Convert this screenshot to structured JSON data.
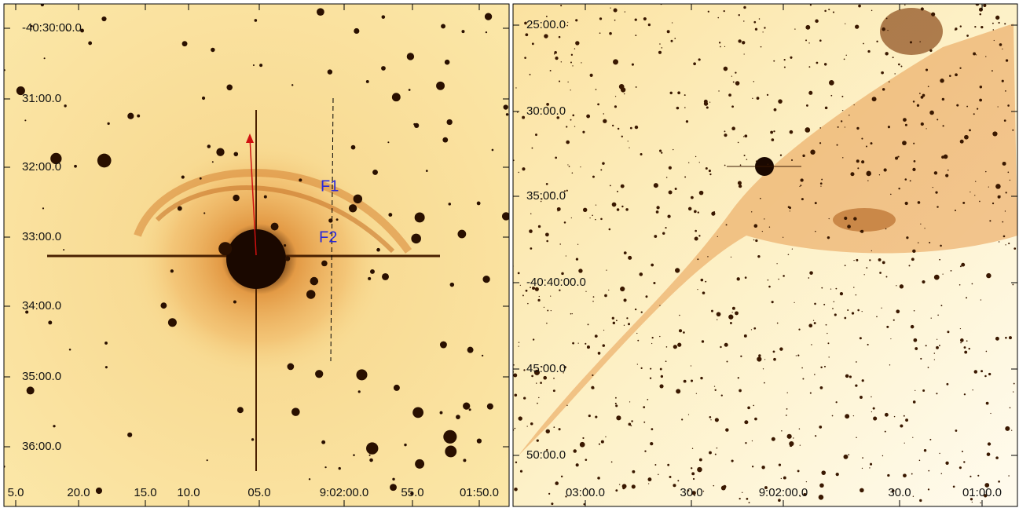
{
  "panels": [
    {
      "dec_labels": [
        "-40:30:00.0",
        "31:00.0",
        "32:00.0",
        "33:00.0",
        "34:00.0",
        "35:00.0",
        "36:00.0"
      ],
      "ra_labels": [
        "5.0",
        "20.0",
        "15.0",
        "10.0",
        "05.0",
        "9:02:00.0",
        "55.0",
        "01:50.0"
      ],
      "annotations": [
        "F1",
        "F2"
      ]
    },
    {
      "dec_labels": [
        "25:00.0",
        "30:00.0",
        "35:00.0",
        "-40:40:00.0",
        "45:00.0",
        "50:00.0"
      ],
      "ra_labels": [
        "03:00.0",
        "30.0",
        "9:02:00.0",
        "30.0",
        "01:00.0"
      ]
    }
  ]
}
